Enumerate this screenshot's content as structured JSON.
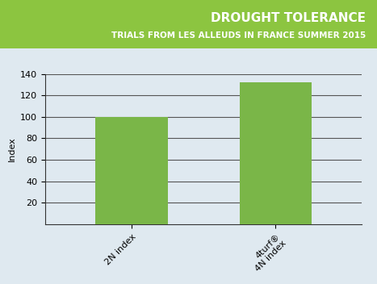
{
  "chart_data": {
    "type": "bar",
    "title": "DROUGHT TOLERANCE",
    "subtitle": "TRIALS FROM LES ALLEUDS IN FRANCE SUMMER 2015",
    "y_label": "Index",
    "categories": [
      "2N index",
      "4turf®\n4N index"
    ],
    "values": [
      100,
      132
    ],
    "color": "#7ab648",
    "ylim": [
      0,
      140
    ],
    "yticks": [
      20,
      40,
      60,
      80,
      100,
      120,
      140
    ],
    "grid": true
  }
}
